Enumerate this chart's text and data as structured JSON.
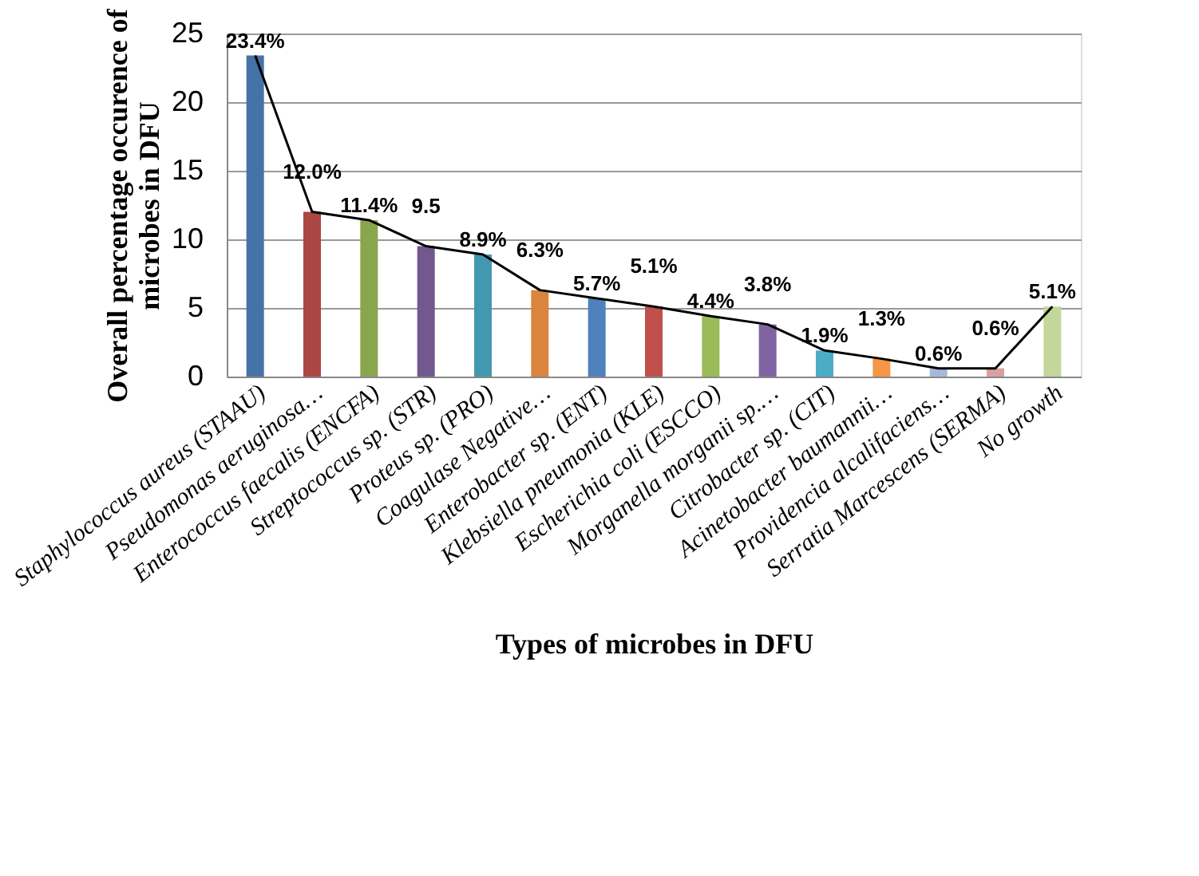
{
  "chart_data": {
    "type": "bar",
    "xlabel": "Types of microbes in DFU",
    "ylabel": "Overall percentage occurence of microbes in DFU",
    "categories": [
      "Staphylococcus aureus (STAAU)",
      "Pseudomonas aeruginosa…",
      "Enterococcus faecalis (ENCFA)",
      "Streptococcus sp. (STR)",
      "Proteus sp. (PRO)",
      "Coagulase Negative…",
      "Enterobacter sp. (ENT)",
      "Klebsiella pneumonia (KLE)",
      "Escherichia coli (ESCCO)",
      "Morganella morganii sp.…",
      "Citrobacter sp. (CIT)",
      "Acinetobacter baumannii…",
      "Providencia alcalifaciens…",
      "Serratia Marcescens (SERMA)",
      "No growth"
    ],
    "series": [
      {
        "colors": [
          "#4572a7",
          "#aa4643",
          "#89a54e",
          "#71588f",
          "#4198af",
          "#db843d",
          "#4f81bd",
          "#c0504d",
          "#9bbb59",
          "#8064a2",
          "#4bacc6",
          "#f79646",
          "#a5b8d9",
          "#d9a0a0",
          "#c3d69b"
        ],
        "values": [
          23.4,
          12.0,
          11.4,
          9.5,
          8.9,
          6.3,
          5.7,
          5.1,
          4.4,
          3.8,
          1.9,
          1.3,
          0.6,
          0.6,
          5.1
        ],
        "value_labels": [
          "23.4%",
          "12.0%",
          "11.4%",
          "9.5",
          "8.9%",
          "6.3%",
          "5.7%",
          "5.1%",
          "4.4%",
          "3.8%",
          "1.9%",
          "1.3%",
          "0.6%",
          "0.6%",
          "5.1%"
        ]
      },
      {
        "type": "line",
        "color": "#000000",
        "values": [
          23.4,
          12.0,
          11.4,
          9.5,
          8.9,
          6.3,
          5.7,
          5.1,
          4.4,
          3.8,
          1.9,
          1.3,
          0.6,
          0.6,
          5.1
        ]
      }
    ],
    "ylim": [
      0,
      25
    ],
    "yticks": [
      0,
      5,
      10,
      15,
      20,
      25
    ],
    "grid": "y"
  }
}
